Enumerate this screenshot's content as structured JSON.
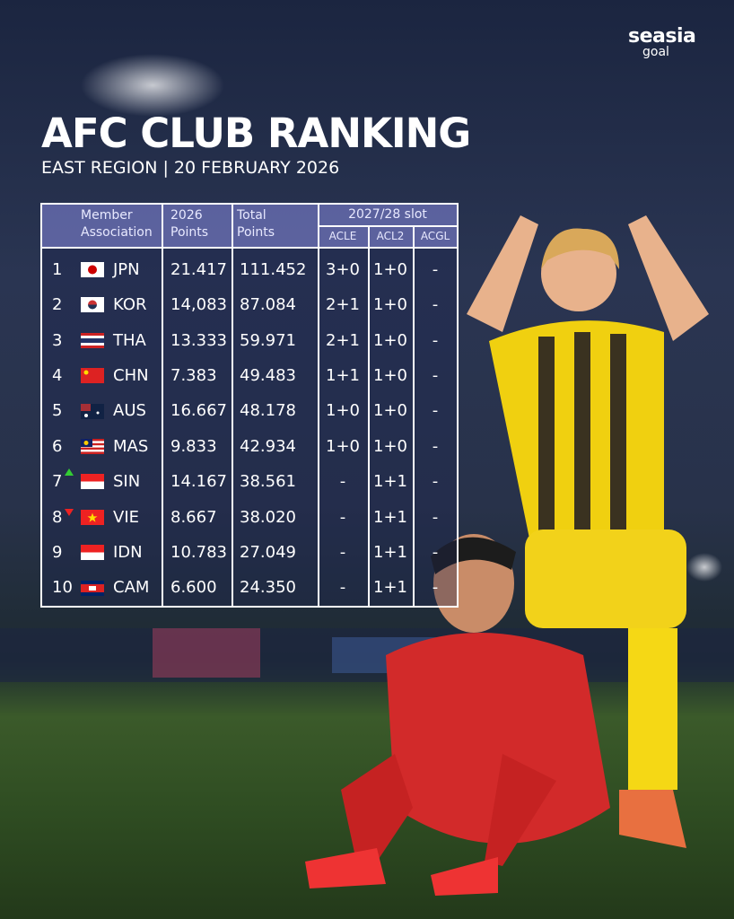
{
  "brand": {
    "name": "seasia",
    "sub": "goal"
  },
  "header": {
    "title": "AFC CLUB RANKING",
    "subtitle": "EAST REGION | 20 FEBRUARY 2026"
  },
  "table": {
    "columns": [
      "Member Association",
      "2026 Points",
      "Total Points"
    ],
    "slot_header": "2027/28 slot",
    "slot_columns": [
      "ACLE",
      "ACL2",
      "ACGL"
    ],
    "rows": [
      [
        "1",
        "JPN",
        "21.417",
        "111.452",
        "3+0",
        "1+0",
        "-"
      ],
      [
        "2",
        "KOR",
        "14,083",
        "87.084",
        "2+1",
        "1+0",
        "-"
      ],
      [
        "3",
        "THA",
        "13.333",
        "59.971",
        "2+1",
        "1+0",
        "-"
      ],
      [
        "4",
        "CHN",
        "7.383",
        "49.483",
        "1+1",
        "1+0",
        "-"
      ],
      [
        "5",
        "AUS",
        "16.667",
        "48.178",
        "1+0",
        "1+0",
        "-"
      ],
      [
        "6",
        "MAS",
        "9.833",
        "42.934",
        "1+0",
        "1+0",
        "-"
      ],
      [
        "7",
        "SIN",
        "14.167",
        "38.561",
        "-",
        "1+1",
        "-"
      ],
      [
        "8",
        "VIE",
        "8.667",
        "38.020",
        "-",
        "1+1",
        "-"
      ],
      [
        "9",
        "IDN",
        "10.783",
        "27.049",
        "-",
        "1+1",
        "-"
      ],
      [
        "10",
        "CAM",
        "6.600",
        "24.350",
        "-",
        "1+1",
        "-"
      ]
    ]
  }
}
